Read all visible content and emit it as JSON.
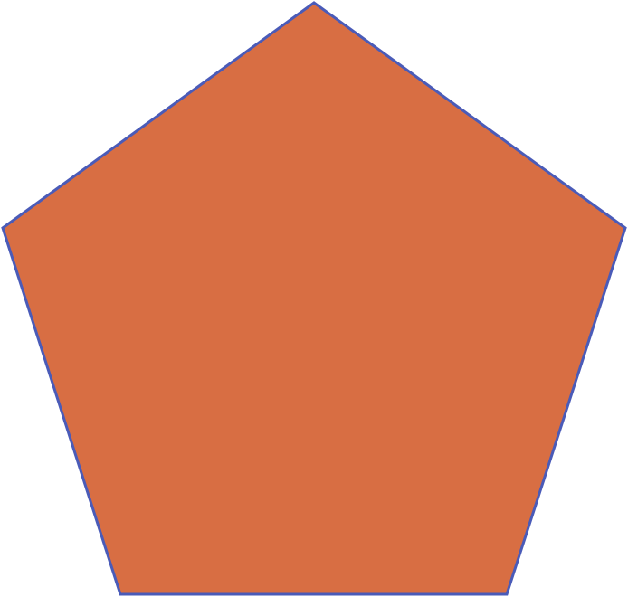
{
  "shape": {
    "type": "regular-pentagon",
    "fill_color": "#D86E43",
    "stroke_color": "#4A5BB8"
  }
}
